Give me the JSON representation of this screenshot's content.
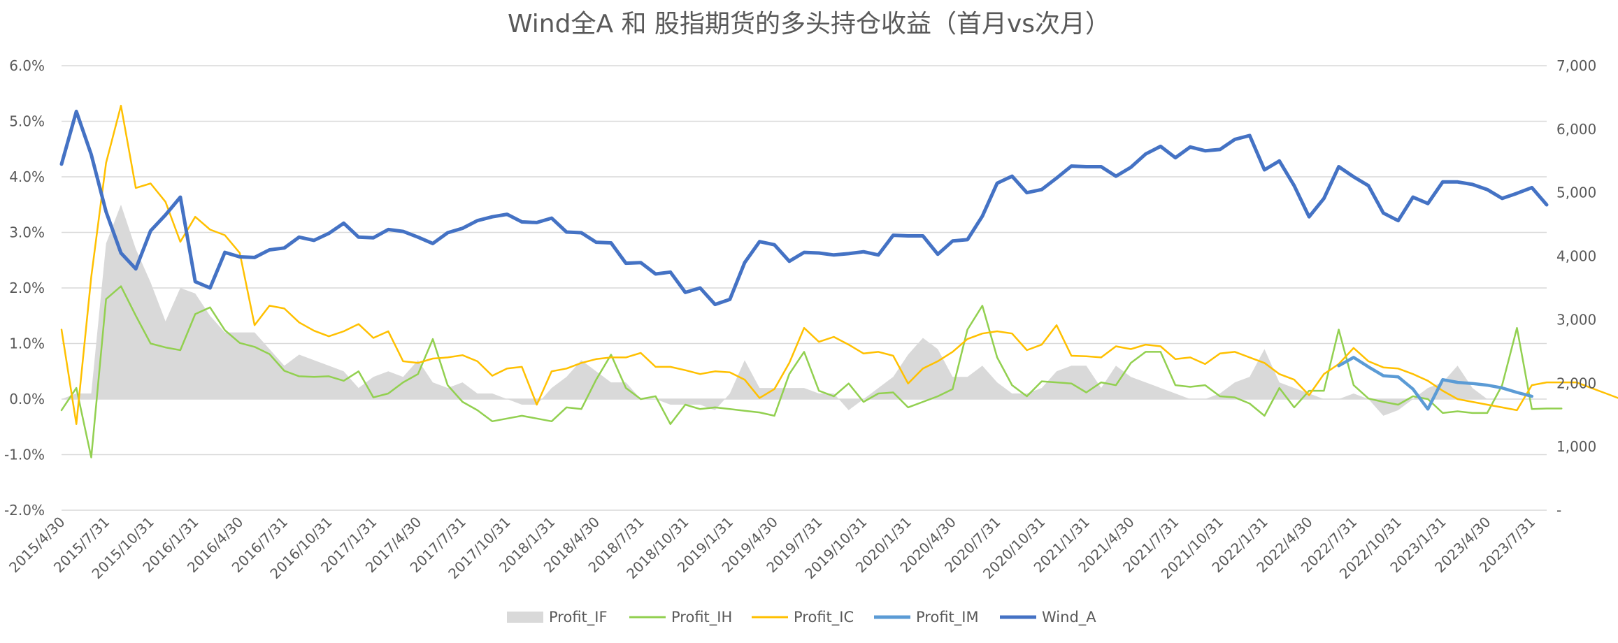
{
  "chart_data": {
    "type": "line",
    "title": "Wind全A 和 股指期货的多头持仓收益（首月vs次月）",
    "xlabel": "",
    "ylabel": "",
    "y_left": {
      "ylim": [
        -0.02,
        0.06
      ],
      "ticks": [
        -0.02,
        -0.01,
        0.0,
        0.01,
        0.02,
        0.03,
        0.04,
        0.05,
        0.06
      ],
      "tick_labels": [
        "-2.0%",
        "-1.0%",
        "0.0%",
        "1.0%",
        "2.0%",
        "3.0%",
        "4.0%",
        "5.0%",
        "6.0%"
      ]
    },
    "y_right": {
      "ylim": [
        0,
        7000
      ],
      "ticks": [
        0,
        1000,
        2000,
        3000,
        4000,
        5000,
        6000,
        7000
      ],
      "tick_labels": [
        "-",
        "1,000",
        "2,000",
        "3,000",
        "4,000",
        "5,000",
        "6,000",
        "7,000"
      ]
    },
    "grid": true,
    "legend_position": "bottom",
    "x_tick_labels": [
      "2015/4/30",
      "2015/7/31",
      "2015/10/31",
      "2016/1/31",
      "2016/4/30",
      "2016/7/31",
      "2016/10/31",
      "2017/1/31",
      "2017/4/30",
      "2017/7/31",
      "2017/10/31",
      "2018/1/31",
      "2018/4/30",
      "2018/7/31",
      "2018/10/31",
      "2019/1/31",
      "2019/4/30",
      "2019/7/31",
      "2019/10/31",
      "2020/1/31",
      "2020/4/30",
      "2020/7/31",
      "2020/10/31",
      "2021/1/31",
      "2021/4/30",
      "2021/7/31",
      "2021/10/31",
      "2022/1/31",
      "2022/4/30",
      "2022/7/31",
      "2022/10/31",
      "2023/1/31",
      "2023/4/30",
      "2023/7/31"
    ],
    "series": [
      {
        "name": "Profit_IF",
        "type": "area",
        "axis": "left",
        "color": "#d9d9d9",
        "values": [
          0.0,
          0.001,
          0.001,
          0.028,
          0.035,
          0.027,
          0.021,
          0.014,
          0.02,
          0.019,
          0.015,
          0.012,
          0.012,
          0.012,
          0.009,
          0.006,
          0.008,
          0.007,
          0.006,
          0.005,
          0.002,
          0.004,
          0.005,
          0.004,
          0.007,
          0.003,
          0.002,
          0.003,
          0.001,
          0.001,
          0.0,
          -0.001,
          -0.001,
          0.002,
          0.004,
          0.007,
          0.005,
          0.003,
          0.003,
          0.0,
          0.0,
          -0.001,
          -0.001,
          -0.001,
          -0.002,
          0.001,
          0.007,
          0.002,
          0.002,
          0.002,
          0.002,
          0.001,
          0.001,
          -0.002,
          0.0,
          0.002,
          0.004,
          0.008,
          0.011,
          0.009,
          0.004,
          0.004,
          0.006,
          0.003,
          0.001,
          0.001,
          0.002,
          0.005,
          0.006,
          0.006,
          0.002,
          0.006,
          0.004,
          0.003,
          0.002,
          0.001,
          0.0,
          0.0,
          0.001,
          0.003,
          0.004,
          0.009,
          0.003,
          0.002,
          0.001,
          0.0,
          0.0,
          0.001,
          0.0,
          -0.003,
          -0.002,
          0.0,
          0.002,
          0.003,
          0.006,
          0.002,
          0.0,
          0.0
        ]
      },
      {
        "name": "Profit_IH",
        "type": "line",
        "axis": "left",
        "color": "#92d050",
        "values": [
          -0.002,
          0.002,
          -0.0105,
          0.018,
          0.0203,
          0.015,
          0.01,
          0.0093,
          0.0088,
          0.0153,
          0.0165,
          0.0124,
          0.0101,
          0.0094,
          0.0081,
          0.0051,
          0.0041,
          0.004,
          0.0041,
          0.0033,
          0.005,
          0.0003,
          0.001,
          0.003,
          0.0045,
          0.0108,
          0.0025,
          -0.0005,
          -0.002,
          -0.004,
          -0.0035,
          -0.003,
          -0.0035,
          -0.004,
          -0.0015,
          -0.0018,
          0.0035,
          0.008,
          0.002,
          0.0,
          0.0005,
          -0.0045,
          -0.001,
          -0.0018,
          -0.0015,
          -0.0018,
          -0.0021,
          -0.0024,
          -0.003,
          0.0045,
          0.0085,
          0.0015,
          0.0005,
          0.0028,
          -0.0005,
          0.001,
          0.0012,
          -0.0015,
          -0.0005,
          0.0005,
          0.0018,
          0.0125,
          0.0168,
          0.0075,
          0.0025,
          0.0005,
          0.0032,
          0.003,
          0.0028,
          0.0012,
          0.003,
          0.0025,
          0.0065,
          0.0085,
          0.0085,
          0.0025,
          0.0022,
          0.0025,
          0.0005,
          0.0003,
          -0.0008,
          -0.003,
          0.002,
          -0.0015,
          0.0015,
          0.0015,
          0.0125,
          0.0025,
          0.0001,
          -0.0005,
          -0.001,
          0.0005,
          0.0,
          -0.0025,
          -0.0022,
          -0.0025,
          -0.0025,
          0.0025,
          0.0128,
          -0.0018,
          -0.0017,
          -0.0017
        ]
      },
      {
        "name": "Profit_IC",
        "type": "line",
        "axis": "left",
        "color": "#ffc000",
        "values": [
          0.0125,
          -0.0045,
          0.022,
          0.0425,
          0.0528,
          0.038,
          0.0388,
          0.0355,
          0.0283,
          0.0328,
          0.0305,
          0.0295,
          0.0263,
          0.0133,
          0.0168,
          0.0163,
          0.0138,
          0.0123,
          0.0113,
          0.0122,
          0.0135,
          0.011,
          0.0122,
          0.0068,
          0.0065,
          0.0073,
          0.0075,
          0.0079,
          0.0068,
          0.0042,
          0.0055,
          0.0058,
          -0.001,
          0.005,
          0.0055,
          0.0065,
          0.0072,
          0.0075,
          0.0075,
          0.0083,
          0.0058,
          0.0058,
          0.0052,
          0.0045,
          0.005,
          0.0048,
          0.0035,
          0.0002,
          0.0018,
          0.0065,
          0.0128,
          0.0103,
          0.0112,
          0.0098,
          0.0082,
          0.0085,
          0.0078,
          0.0028,
          0.0055,
          0.0068,
          0.0085,
          0.0108,
          0.0118,
          0.0122,
          0.0118,
          0.0088,
          0.0098,
          0.0133,
          0.0078,
          0.0077,
          0.0075,
          0.0095,
          0.009,
          0.0098,
          0.0095,
          0.0072,
          0.0075,
          0.0063,
          0.0082,
          0.0085,
          0.0075,
          0.0065,
          0.0045,
          0.0035,
          0.0007,
          0.0045,
          0.0063,
          0.0092,
          0.0068,
          0.0057,
          0.0055,
          0.0045,
          0.0033,
          0.0015,
          0.0,
          -0.0005,
          -0.001,
          -0.0015,
          -0.002,
          0.0025,
          0.003,
          0.003,
          0.003,
          0.002,
          0.001,
          0.0,
          -0.001
        ]
      },
      {
        "name": "Profit_IM",
        "type": "line",
        "axis": "left",
        "color": "#5b9bd5",
        "values": [
          0.006,
          0.0075,
          0.0058,
          0.0042,
          0.004,
          0.0018,
          -0.0018,
          0.0035,
          0.003,
          0.0028,
          0.0025,
          0.002,
          0.0012,
          0.0005
        ]
      },
      {
        "name": "Wind_A",
        "type": "line",
        "axis": "right",
        "color": "#4472c4",
        "values": [
          5450,
          6280,
          5600,
          4700,
          4050,
          3800,
          4400,
          4650,
          4930,
          3600,
          3500,
          4060,
          3990,
          3980,
          4100,
          4130,
          4300,
          4250,
          4360,
          4520,
          4300,
          4290,
          4420,
          4390,
          4300,
          4200,
          4370,
          4440,
          4560,
          4620,
          4660,
          4540,
          4530,
          4600,
          4380,
          4370,
          4220,
          4210,
          3890,
          3900,
          3720,
          3750,
          3430,
          3500,
          3240,
          3320,
          3900,
          4230,
          4180,
          3920,
          4060,
          4050,
          4020,
          4040,
          4070,
          4020,
          4330,
          4320,
          4320,
          4030,
          4240,
          4260,
          4630,
          5150,
          5260,
          5000,
          5050,
          5230,
          5420,
          5410,
          5410,
          5260,
          5400,
          5610,
          5730,
          5550,
          5720,
          5660,
          5680,
          5840,
          5900,
          5360,
          5500,
          5110,
          4620,
          4910,
          5410,
          5250,
          5110,
          4680,
          4560,
          4930,
          4830,
          5170,
          5170,
          5130,
          5050,
          4910,
          4990,
          5080,
          4810
        ]
      }
    ]
  }
}
